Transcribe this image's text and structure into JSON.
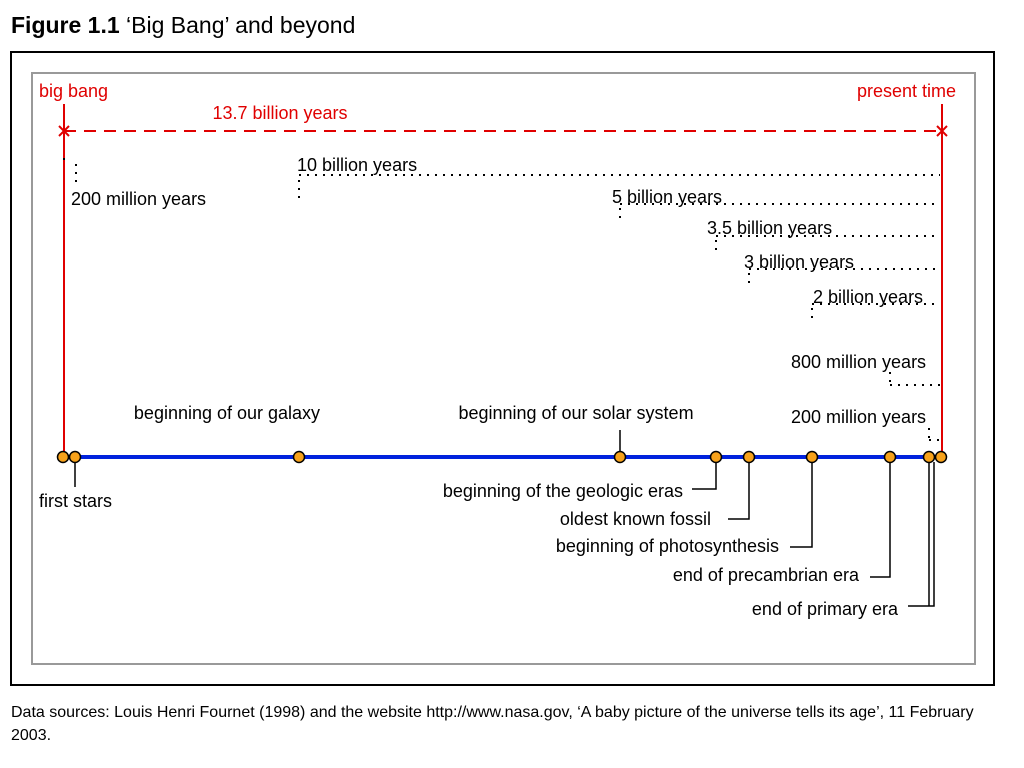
{
  "figure": {
    "label": "Figure 1.1",
    "title": "‘Big Bang’ and beyond"
  },
  "span": {
    "start": "big bang",
    "end": "present time",
    "duration": "13.7 billion years"
  },
  "intervals": [
    "200 million years",
    "10 billion years",
    "5 billion years",
    "3.5 billion years",
    "3 billion years",
    "2 billion years",
    "800 million years",
    "200 million years"
  ],
  "events": [
    "first stars",
    "beginning of our galaxy",
    "beginning of our solar system",
    "beginning of the geologic eras",
    "oldest known fossil",
    "beginning of photosynthesis",
    "end of precambrian era",
    "end of primary era"
  ],
  "source": "Data sources: Louis Henri Fournet (1998) and the website http://www.nasa.gov, ‘A baby picture of the universe tells its age’, 11 February 2003."
}
